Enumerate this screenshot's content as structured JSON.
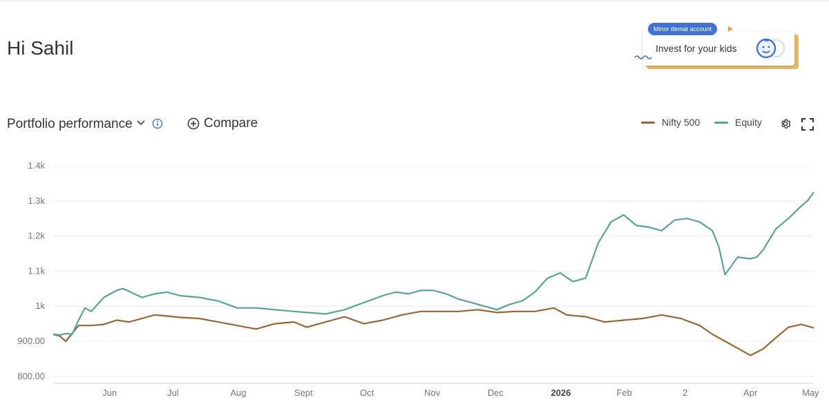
{
  "greeting": "Hi Sahil",
  "promo": {
    "badge": "Minor demat account",
    "text": "Invest for your kids"
  },
  "toolbar": {
    "title": "Portfolio performance",
    "compare_label": "Compare"
  },
  "icons": [
    "chevron-down-icon",
    "info-icon",
    "plus-circle-icon",
    "settings-icon",
    "fullscreen-icon",
    "kid-face-icon"
  ],
  "colors": {
    "nifty": "#9a6530",
    "equity": "#55a594",
    "badge": "#3f74d6",
    "accent": "#e8b96a"
  },
  "chart_data": {
    "type": "line",
    "title": "",
    "xlabel": "",
    "ylabel": "",
    "ylim": [
      780,
      1400
    ],
    "yticks": [
      800,
      900,
      1000,
      1100,
      1200,
      1300,
      1400
    ],
    "ytick_labels": [
      "800.00",
      "900.00",
      "1k",
      "1.1k",
      "1.2k",
      "1.3k",
      "1.4k"
    ],
    "xlim": [
      0,
      12
    ],
    "xticks": [
      {
        "x": 0.89,
        "label": "Jun",
        "bold": false
      },
      {
        "x": 1.89,
        "label": "Jul",
        "bold": false
      },
      {
        "x": 2.92,
        "label": "Aug",
        "bold": false
      },
      {
        "x": 3.95,
        "label": "Sept",
        "bold": false
      },
      {
        "x": 4.95,
        "label": "Oct",
        "bold": false
      },
      {
        "x": 5.98,
        "label": "Nov",
        "bold": false
      },
      {
        "x": 6.98,
        "label": "Dec",
        "bold": false
      },
      {
        "x": 8.01,
        "label": "2026",
        "bold": true
      },
      {
        "x": 9.01,
        "label": "Feb",
        "bold": false
      },
      {
        "x": 9.97,
        "label": "2",
        "bold": false
      },
      {
        "x": 11.0,
        "label": "Apr",
        "bold": false
      },
      {
        "x": 11.95,
        "label": "May",
        "bold": false
      }
    ],
    "grid": true,
    "legend": "top-right",
    "series": [
      {
        "name": "Nifty 500",
        "x": [
          0.0,
          0.1,
          0.2,
          0.4,
          0.6,
          0.8,
          1.0,
          1.2,
          1.4,
          1.6,
          1.8,
          2.0,
          2.3,
          2.6,
          2.9,
          3.2,
          3.5,
          3.8,
          4.0,
          4.3,
          4.6,
          4.9,
          5.2,
          5.5,
          5.8,
          6.1,
          6.4,
          6.7,
          7.0,
          7.3,
          7.6,
          7.9,
          8.1,
          8.4,
          8.7,
          9.0,
          9.3,
          9.6,
          9.9,
          10.2,
          10.4,
          10.6,
          10.8,
          11.0,
          11.2,
          11.4,
          11.6,
          11.8,
          12.0
        ],
        "values": [
          920,
          915,
          900,
          945,
          945,
          948,
          960,
          955,
          965,
          975,
          972,
          968,
          965,
          955,
          945,
          935,
          950,
          955,
          940,
          955,
          970,
          950,
          960,
          975,
          985,
          985,
          985,
          990,
          982,
          985,
          985,
          995,
          975,
          970,
          955,
          960,
          965,
          975,
          965,
          945,
          920,
          900,
          880,
          860,
          878,
          910,
          940,
          948,
          938
        ]
      },
      {
        "name": "Equity",
        "x": [
          0.0,
          0.1,
          0.2,
          0.3,
          0.4,
          0.5,
          0.6,
          0.8,
          1.0,
          1.1,
          1.2,
          1.4,
          1.6,
          1.8,
          2.0,
          2.3,
          2.6,
          2.9,
          3.2,
          3.5,
          3.8,
          4.0,
          4.3,
          4.6,
          4.9,
          5.2,
          5.4,
          5.6,
          5.8,
          6.0,
          6.2,
          6.4,
          6.6,
          6.8,
          7.0,
          7.2,
          7.4,
          7.6,
          7.8,
          8.0,
          8.2,
          8.4,
          8.6,
          8.8,
          9.0,
          9.2,
          9.4,
          9.6,
          9.8,
          10.0,
          10.2,
          10.4,
          10.5,
          10.6,
          10.8,
          11.0,
          11.1,
          11.2,
          11.3,
          11.4,
          11.6,
          11.8,
          11.9,
          12.0
        ],
        "values": [
          920,
          918,
          922,
          920,
          960,
          995,
          985,
          1025,
          1045,
          1050,
          1042,
          1025,
          1035,
          1040,
          1030,
          1025,
          1015,
          995,
          995,
          990,
          985,
          982,
          978,
          990,
          1010,
          1030,
          1040,
          1035,
          1045,
          1045,
          1035,
          1020,
          1010,
          1000,
          990,
          1005,
          1015,
          1040,
          1080,
          1095,
          1070,
          1080,
          1180,
          1240,
          1260,
          1230,
          1225,
          1215,
          1245,
          1250,
          1240,
          1215,
          1170,
          1090,
          1140,
          1135,
          1140,
          1160,
          1190,
          1220,
          1250,
          1285,
          1300,
          1325
        ]
      }
    ]
  }
}
